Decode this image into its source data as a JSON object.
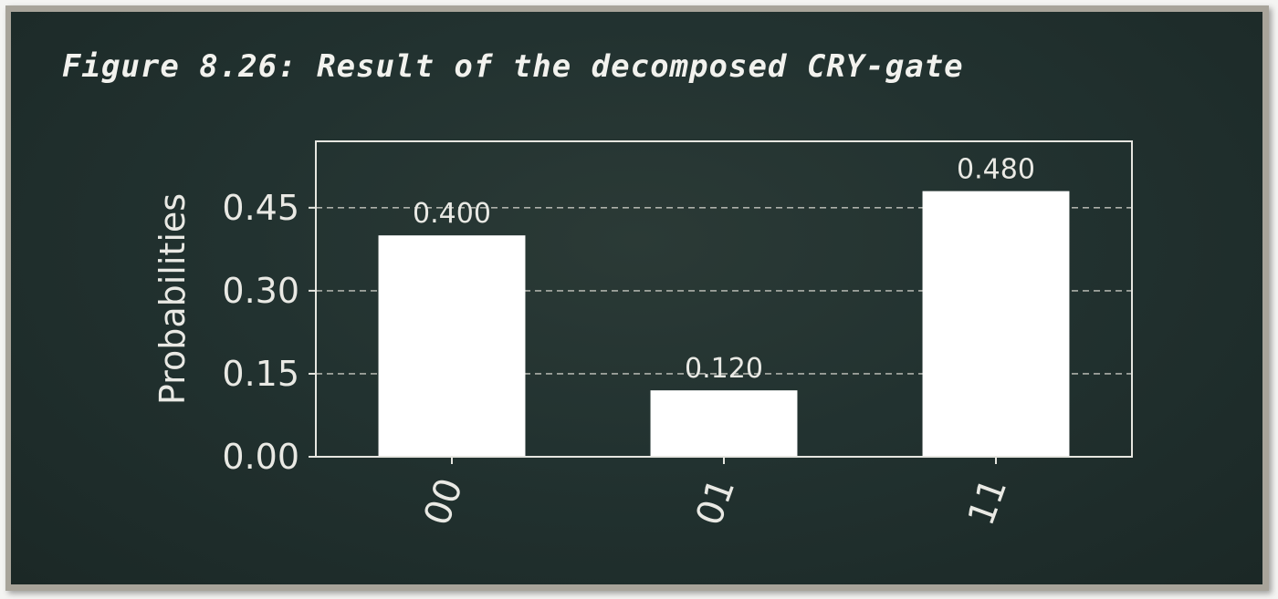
{
  "figure_title": "Figure 8.26: Result of the decomposed CRY-gate",
  "colors": {
    "board": "#223230",
    "frame": "#a8a49a",
    "bars": "#ffffff",
    "text": "#e9e9e4",
    "grid": "#cfcfc8"
  },
  "chart_data": {
    "type": "bar",
    "title": "",
    "xlabel": "",
    "ylabel": "Probabilities",
    "categories": [
      "00",
      "01",
      "11"
    ],
    "values": [
      0.4,
      0.12,
      0.48
    ],
    "value_labels": [
      "0.400",
      "0.120",
      "0.480"
    ],
    "ylim": [
      0,
      0.57
    ],
    "yticks": [
      0.0,
      0.15,
      0.3,
      0.45
    ],
    "ytick_labels": [
      "0.00",
      "0.15",
      "0.30",
      "0.45"
    ],
    "grid": "horizontal dashed",
    "xtick_rotation": "rotated ~70°"
  }
}
